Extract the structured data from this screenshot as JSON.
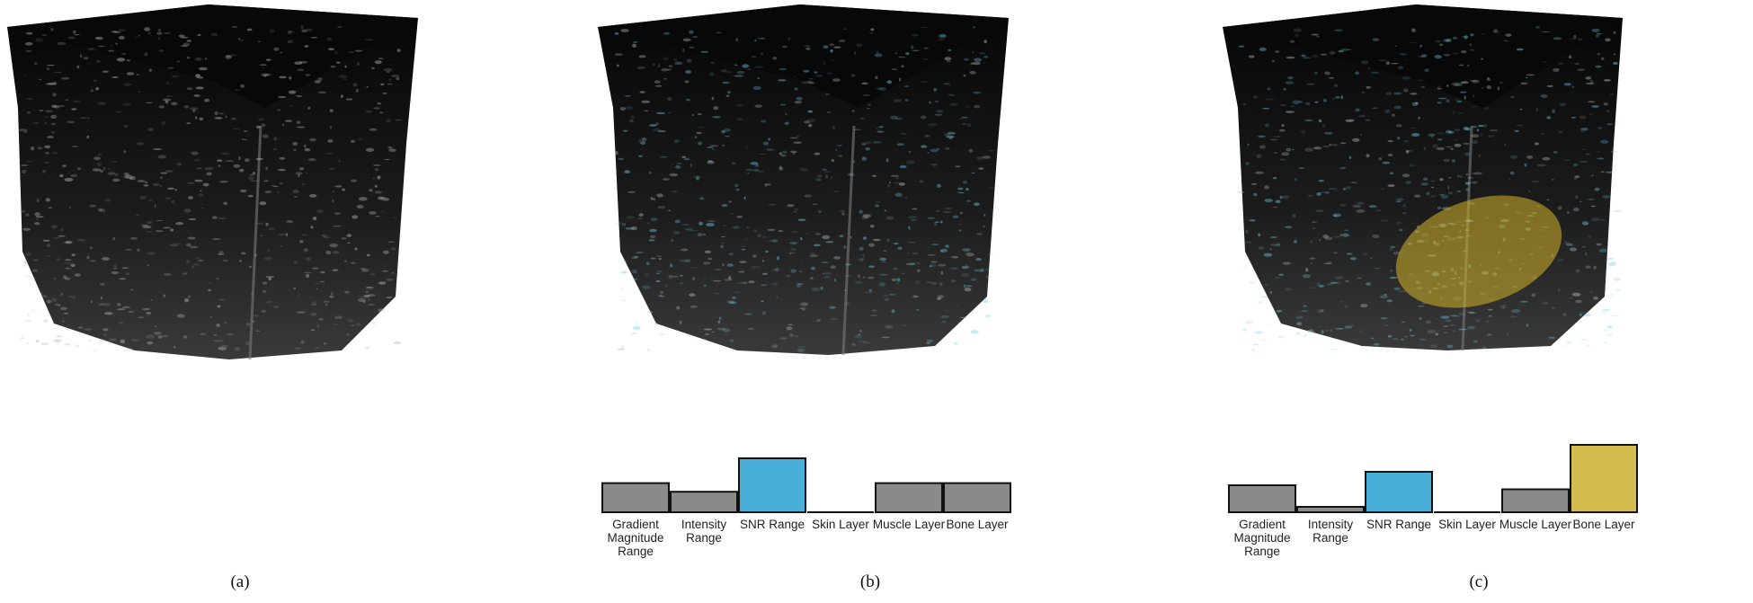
{
  "panels": [
    {
      "id": "a",
      "caption": "(a)",
      "tint": "#ffffff",
      "highlight": null,
      "bars": null
    },
    {
      "id": "b",
      "caption": "(b)",
      "tint": "#6fd3ee",
      "highlight": null,
      "bars": {
        "labels": [
          [
            "Gradient",
            "Magnitude",
            "Range"
          ],
          [
            "Intensity",
            "Range"
          ],
          [
            "SNR Range"
          ],
          [
            "Skin Layer"
          ],
          [
            "Muscle Layer"
          ],
          [
            "Bone Layer"
          ]
        ],
        "values": [
          0.54,
          0.38,
          1.0,
          0.0,
          0.54,
          0.54
        ],
        "colors": [
          "#8a8a8a",
          "#8a8a8a",
          "#4aafd8",
          "#8a8a8a",
          "#8a8a8a",
          "#8a8a8a"
        ]
      }
    },
    {
      "id": "c",
      "caption": "(c)",
      "tint": "#6fd3ee",
      "highlight": "#d4b42a",
      "bars": {
        "labels": [
          [
            "Gradient",
            "Magnitude",
            "Range"
          ],
          [
            "Intensity",
            "Range"
          ],
          [
            "SNR Range"
          ],
          [
            "Skin Layer"
          ],
          [
            "Muscle Layer"
          ],
          [
            "Bone Layer"
          ]
        ],
        "values": [
          0.4,
          0.08,
          0.6,
          0.0,
          0.34,
          1.0
        ],
        "colors": [
          "#8a8a8a",
          "#8a8a8a",
          "#4aafd8",
          "#8a8a8a",
          "#8a8a8a",
          "#d4bd4e"
        ]
      }
    }
  ]
}
